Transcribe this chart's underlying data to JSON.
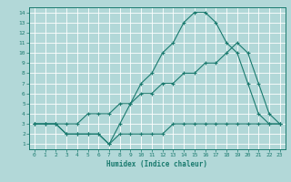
{
  "xlabel": "Humidex (Indice chaleur)",
  "background_color": "#b2d8d8",
  "grid_color": "#ffffff",
  "line_color": "#1a7a6e",
  "xlim": [
    -0.5,
    23.5
  ],
  "ylim": [
    0.5,
    14.5
  ],
  "xticks": [
    0,
    1,
    2,
    3,
    4,
    5,
    6,
    7,
    8,
    9,
    10,
    11,
    12,
    13,
    14,
    15,
    16,
    17,
    18,
    19,
    20,
    21,
    22,
    23
  ],
  "yticks": [
    1,
    2,
    3,
    4,
    5,
    6,
    7,
    8,
    9,
    10,
    11,
    12,
    13,
    14
  ],
  "line1_x": [
    0,
    1,
    2,
    3,
    4,
    5,
    6,
    7,
    8,
    9,
    10,
    11,
    12,
    13,
    14,
    15,
    16,
    17,
    18,
    19,
    20,
    21,
    22,
    23
  ],
  "line1_y": [
    3,
    3,
    3,
    2,
    2,
    2,
    2,
    1,
    2,
    2,
    2,
    2,
    2,
    3,
    3,
    3,
    3,
    3,
    3,
    3,
    3,
    3,
    3,
    3
  ],
  "line2_x": [
    0,
    1,
    2,
    3,
    4,
    5,
    6,
    7,
    8,
    9,
    10,
    11,
    12,
    13,
    14,
    15,
    16,
    17,
    18,
    19,
    20,
    21,
    22,
    23
  ],
  "line2_y": [
    3,
    3,
    3,
    3,
    3,
    4,
    4,
    4,
    5,
    5,
    6,
    6,
    7,
    7,
    8,
    8,
    9,
    9,
    10,
    11,
    10,
    7,
    4,
    3
  ],
  "line3_x": [
    0,
    1,
    2,
    3,
    4,
    5,
    6,
    7,
    8,
    9,
    10,
    11,
    12,
    13,
    14,
    15,
    16,
    17,
    18,
    19,
    20,
    21,
    22,
    23
  ],
  "line3_y": [
    3,
    3,
    3,
    2,
    2,
    2,
    2,
    1,
    3,
    5,
    7,
    8,
    10,
    11,
    13,
    14,
    14,
    13,
    11,
    10,
    7,
    4,
    3,
    3
  ]
}
